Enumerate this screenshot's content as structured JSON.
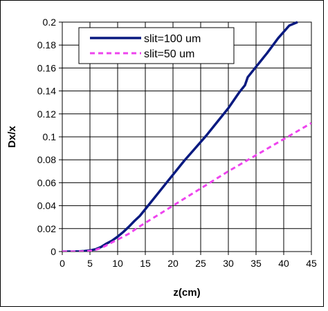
{
  "chart_data": {
    "type": "line",
    "xlabel": "z(cm)",
    "ylabel": "Dx/x",
    "xlim": [
      0,
      45
    ],
    "ylim": [
      0,
      0.2
    ],
    "x_ticks": [
      "0",
      "5",
      "10",
      "15",
      "20",
      "25",
      "30",
      "35",
      "40",
      "45"
    ],
    "y_ticks": [
      "0",
      "0.02",
      "0.04",
      "0.06",
      "0.08",
      "0.1",
      "0.12",
      "0.14",
      "0.16",
      "0.18",
      "0.2"
    ],
    "grid": true,
    "legend_position": "top-center",
    "series": [
      {
        "name": "slit=100 um",
        "color": "#0a1a80",
        "style": "solid",
        "x": [
          0,
          2,
          3,
          4,
          5,
          6,
          7,
          8,
          9,
          10,
          11,
          12,
          13,
          14,
          15,
          16,
          17,
          18,
          19,
          20,
          22,
          24,
          26,
          28,
          30,
          32,
          33,
          33.5,
          35,
          37,
          39,
          41,
          42.5
        ],
        "y": [
          0,
          0,
          0.0002,
          0.0005,
          0.001,
          0.002,
          0.004,
          0.007,
          0.0095,
          0.013,
          0.017,
          0.0215,
          0.0265,
          0.031,
          0.037,
          0.043,
          0.049,
          0.055,
          0.061,
          0.067,
          0.079,
          0.09,
          0.101,
          0.113,
          0.125,
          0.139,
          0.145,
          0.152,
          0.161,
          0.173,
          0.186,
          0.197,
          0.2
        ]
      },
      {
        "name": "slit=50 um",
        "color": "#ee44ee",
        "style": "dashed",
        "x": [
          0,
          2,
          4,
          5,
          6,
          7,
          8,
          9,
          10,
          12,
          14,
          16,
          18,
          20,
          25,
          30,
          35,
          40,
          45
        ],
        "y": [
          0,
          0,
          0.0002,
          0.0006,
          0.0015,
          0.003,
          0.0055,
          0.008,
          0.0105,
          0.0155,
          0.022,
          0.028,
          0.034,
          0.04,
          0.055,
          0.07,
          0.084,
          0.098,
          0.112
        ]
      }
    ]
  }
}
